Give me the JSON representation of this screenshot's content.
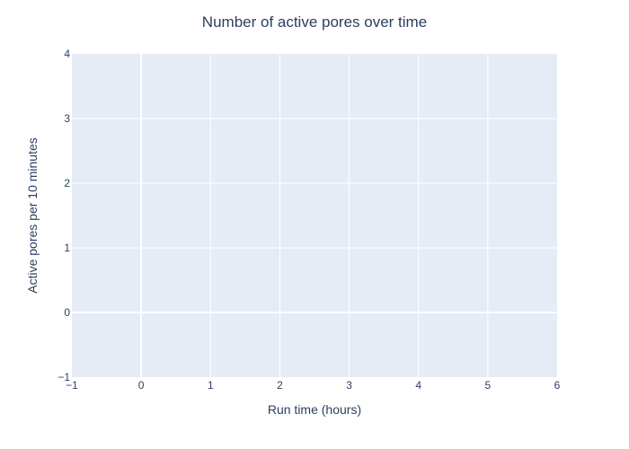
{
  "chart_data": {
    "type": "line",
    "title": "Number of active pores over time",
    "xlabel": "Run time (hours)",
    "ylabel": "Active pores per 10 minutes",
    "xlim": [
      -1,
      6
    ],
    "ylim": [
      -1,
      4
    ],
    "x_ticks": [
      "−1",
      "0",
      "1",
      "2",
      "3",
      "4",
      "5",
      "6"
    ],
    "y_ticks": [
      "−1",
      "0",
      "1",
      "2",
      "3",
      "4"
    ],
    "series": [],
    "grid": true,
    "legend": "none"
  },
  "colors": {
    "plot_background": "#e5ecf6",
    "grid": "#ffffff",
    "text": "#2a3f5f"
  }
}
